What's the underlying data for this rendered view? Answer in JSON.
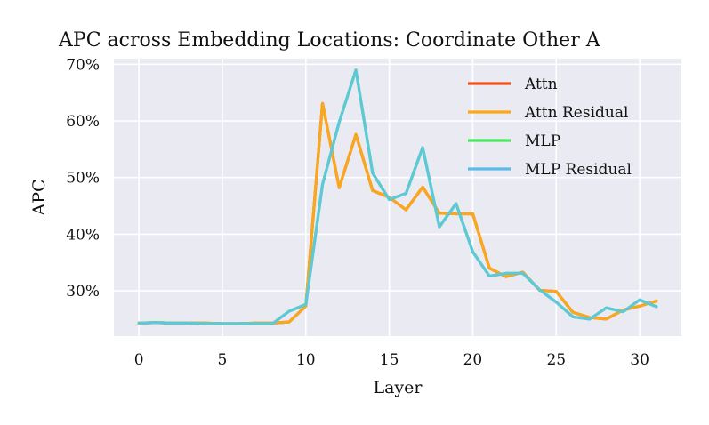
{
  "chart_data": {
    "type": "line",
    "title": "APC across Embedding Locations: Coordinate Other A",
    "xlabel": "Layer",
    "ylabel": "APC",
    "xlim": [
      -1.5,
      32.5
    ],
    "ylim": [
      22.0,
      71.0
    ],
    "xticks": [
      0,
      5,
      10,
      15,
      20,
      25,
      30
    ],
    "xtick_labels": [
      "0",
      "5",
      "10",
      "15",
      "20",
      "25",
      "30"
    ],
    "yticks": [
      30,
      40,
      50,
      60,
      70
    ],
    "ytick_labels": [
      "30%",
      "40%",
      "50%",
      "60%",
      "70%"
    ],
    "grid": true,
    "legend_position": "top-right",
    "x": [
      0,
      1,
      2,
      3,
      4,
      5,
      6,
      7,
      8,
      9,
      10,
      11,
      12,
      13,
      14,
      15,
      16,
      17,
      18,
      19,
      20,
      21,
      22,
      23,
      24,
      25,
      26,
      27,
      28,
      29,
      30,
      31
    ],
    "series": [
      {
        "name": "Attn",
        "color": "#f0501a",
        "values": [
          24.3,
          24.4,
          24.3,
          24.3,
          24.3,
          24.2,
          24.2,
          24.3,
          24.3,
          24.5,
          27.3,
          63.1,
          48.2,
          57.6,
          47.7,
          46.5,
          44.3,
          48.3,
          43.7,
          43.6,
          43.6,
          34.0,
          32.5,
          33.3,
          30.1,
          29.9,
          26.2,
          25.3,
          25.0,
          26.6,
          27.3,
          28.2
        ]
      },
      {
        "name": "Attn Residual",
        "color": "#f9a71c",
        "values": [
          24.3,
          24.4,
          24.3,
          24.3,
          24.3,
          24.2,
          24.2,
          24.3,
          24.3,
          24.5,
          27.3,
          63.1,
          48.2,
          57.6,
          47.7,
          46.5,
          44.3,
          48.3,
          43.7,
          43.6,
          43.6,
          34.0,
          32.5,
          33.3,
          30.1,
          29.9,
          26.2,
          25.3,
          25.0,
          26.6,
          27.3,
          28.2
        ]
      },
      {
        "name": "MLP",
        "color": "#47e85c",
        "values": [
          24.3,
          24.4,
          24.3,
          24.3,
          24.2,
          24.2,
          24.2,
          24.2,
          24.2,
          26.4,
          27.6,
          48.8,
          59.8,
          69.0,
          50.8,
          46.1,
          47.2,
          55.3,
          41.3,
          45.4,
          36.9,
          32.6,
          33.1,
          33.1,
          30.2,
          28.0,
          25.4,
          25.0,
          27.0,
          26.3,
          28.4,
          27.2
        ]
      },
      {
        "name": "MLP Residual",
        "color": "#5ec8d8",
        "values": [
          24.3,
          24.4,
          24.3,
          24.3,
          24.2,
          24.2,
          24.2,
          24.2,
          24.2,
          26.4,
          27.6,
          48.8,
          59.8,
          69.0,
          50.8,
          46.1,
          47.2,
          55.3,
          41.3,
          45.4,
          36.9,
          32.6,
          33.1,
          33.1,
          30.2,
          28.0,
          25.4,
          25.0,
          27.0,
          26.3,
          28.4,
          27.2
        ]
      }
    ]
  },
  "legend": {
    "colors": [
      "#f0501a",
      "#f9a71c",
      "#47e85c",
      "#5fb9ea"
    ]
  }
}
